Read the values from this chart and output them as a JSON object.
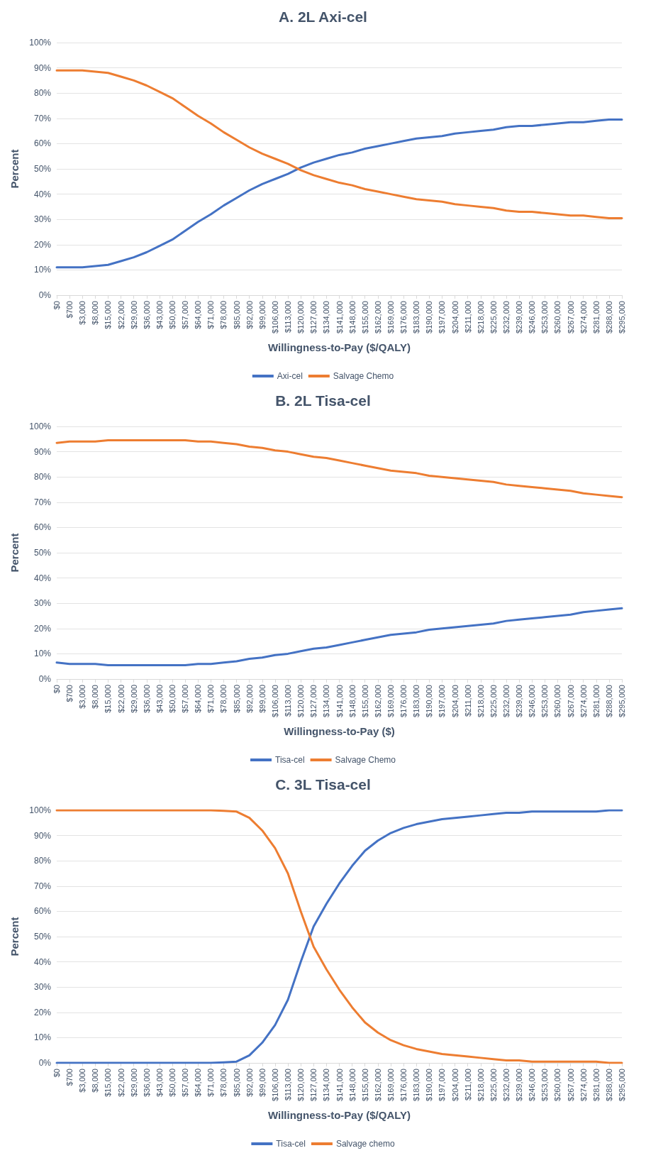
{
  "chart_data": [
    {
      "type": "line",
      "title": "A. 2L Axi-cel",
      "xlabel": "Willingness-to-Pay ($/QALY)",
      "ylabel": "Percent",
      "categories": [
        "$0",
        "$700",
        "$3,000",
        "$8,000",
        "$15,000",
        "$22,000",
        "$29,000",
        "$36,000",
        "$43,000",
        "$50,000",
        "$57,000",
        "$64,000",
        "$71,000",
        "$78,000",
        "$85,000",
        "$92,000",
        "$99,000",
        "$106,000",
        "$113,000",
        "$120,000",
        "$127,000",
        "$134,000",
        "$141,000",
        "$148,000",
        "$155,000",
        "$162,000",
        "$169,000",
        "$176,000",
        "$183,000",
        "$190,000",
        "$197,000",
        "$204,000",
        "$211,000",
        "$218,000",
        "$225,000",
        "$232,000",
        "$239,000",
        "$246,000",
        "$253,000",
        "$260,000",
        "$267,000",
        "$274,000",
        "$281,000",
        "$288,000",
        "$295,000"
      ],
      "series": [
        {
          "name": "Axi-cel",
          "color": "#4472c4",
          "values": [
            11,
            11,
            11,
            11.5,
            12,
            13.5,
            15,
            17,
            19.5,
            22,
            25.5,
            29,
            32,
            35.5,
            38.5,
            41.5,
            44,
            46,
            48,
            50.5,
            52.5,
            54,
            55.5,
            56.5,
            58,
            59,
            60,
            61,
            62,
            62.5,
            63,
            64,
            64.5,
            65,
            65.5,
            66.5,
            67,
            67,
            67.5,
            68,
            68.5,
            68.5,
            69,
            69.5,
            69.5
          ]
        },
        {
          "name": "Salvage Chemo",
          "color": "#ed7d31",
          "values": [
            89,
            89,
            89,
            88.5,
            88,
            86.5,
            85,
            83,
            80.5,
            78,
            74.5,
            71,
            68,
            64.5,
            61.5,
            58.5,
            56,
            54,
            52,
            49.5,
            47.5,
            46,
            44.5,
            43.5,
            42,
            41,
            40,
            39,
            38,
            37.5,
            37,
            36,
            35.5,
            35,
            34.5,
            33.5,
            33,
            33,
            32.5,
            32,
            31.5,
            31.5,
            31,
            30.5,
            30.5
          ]
        }
      ],
      "ylim": [
        0,
        100
      ],
      "yticks": [
        {
          "value": 0,
          "label": "0%"
        },
        {
          "value": 10,
          "label": "10%"
        },
        {
          "value": 20,
          "label": "20%"
        },
        {
          "value": 30,
          "label": "30%"
        },
        {
          "value": 40,
          "label": "40%"
        },
        {
          "value": 50,
          "label": "50%"
        },
        {
          "value": 60,
          "label": "60%"
        },
        {
          "value": 70,
          "label": "70%"
        },
        {
          "value": 80,
          "label": "80%"
        },
        {
          "value": 90,
          "label": "90%"
        },
        {
          "value": 100,
          "label": "100%"
        }
      ],
      "grid": "y",
      "legend": "bottom",
      "marker": "none",
      "line_style": "solid"
    },
    {
      "type": "line",
      "title": "B. 2L Tisa-cel",
      "xlabel": "Willingness-to-Pay ($)",
      "ylabel": "Percent",
      "categories": [
        "$0",
        "$700",
        "$3,000",
        "$8,000",
        "$15,000",
        "$22,000",
        "$29,000",
        "$36,000",
        "$43,000",
        "$50,000",
        "$57,000",
        "$64,000",
        "$71,000",
        "$78,000",
        "$85,000",
        "$92,000",
        "$99,000",
        "$106,000",
        "$113,000",
        "$120,000",
        "$127,000",
        "$134,000",
        "$141,000",
        "$148,000",
        "$155,000",
        "$162,000",
        "$169,000",
        "$176,000",
        "$183,000",
        "$190,000",
        "$197,000",
        "$204,000",
        "$211,000",
        "$218,000",
        "$225,000",
        "$232,000",
        "$239,000",
        "$246,000",
        "$253,000",
        "$260,000",
        "$267,000",
        "$274,000",
        "$281,000",
        "$288,000",
        "$295,000"
      ],
      "series": [
        {
          "name": "Tisa-cel",
          "color": "#4472c4",
          "values": [
            6.5,
            6,
            6,
            6,
            5.5,
            5.5,
            5.5,
            5.5,
            5.5,
            5.5,
            5.5,
            6,
            6,
            6.5,
            7,
            8,
            8.5,
            9.5,
            10,
            11,
            12,
            12.5,
            13.5,
            14.5,
            15.5,
            16.5,
            17.5,
            18,
            18.5,
            19.5,
            20,
            20.5,
            21,
            21.5,
            22,
            23,
            23.5,
            24,
            24.5,
            25,
            25.5,
            26.5,
            27,
            27.5,
            28
          ]
        },
        {
          "name": "Salvage Chemo",
          "color": "#ed7d31",
          "values": [
            93.5,
            94,
            94,
            94,
            94.5,
            94.5,
            94.5,
            94.5,
            94.5,
            94.5,
            94.5,
            94,
            94,
            93.5,
            93,
            92,
            91.5,
            90.5,
            90,
            89,
            88,
            87.5,
            86.5,
            85.5,
            84.5,
            83.5,
            82.5,
            82,
            81.5,
            80.5,
            80,
            79.5,
            79,
            78.5,
            78,
            77,
            76.5,
            76,
            75.5,
            75,
            74.5,
            73.5,
            73,
            72.5,
            72
          ]
        }
      ],
      "ylim": [
        0,
        100
      ],
      "yticks": [
        {
          "value": 0,
          "label": "0%"
        },
        {
          "value": 10,
          "label": "10%"
        },
        {
          "value": 20,
          "label": "20%"
        },
        {
          "value": 30,
          "label": "30%"
        },
        {
          "value": 40,
          "label": "40%"
        },
        {
          "value": 50,
          "label": "50%"
        },
        {
          "value": 60,
          "label": "60%"
        },
        {
          "value": 70,
          "label": "70%"
        },
        {
          "value": 80,
          "label": "80%"
        },
        {
          "value": 90,
          "label": "90%"
        },
        {
          "value": 100,
          "label": "100%"
        }
      ],
      "grid": "y",
      "legend": "bottom",
      "marker": "none",
      "line_style": "solid"
    },
    {
      "type": "line",
      "title": "C. 3L Tisa-cel",
      "xlabel": "Willingness-to-Pay ($/QALY)",
      "ylabel": "Percent",
      "categories": [
        "$0",
        "$700",
        "$3,000",
        "$8,000",
        "$15,000",
        "$22,000",
        "$29,000",
        "$36,000",
        "$43,000",
        "$50,000",
        "$57,000",
        "$64,000",
        "$71,000",
        "$78,000",
        "$85,000",
        "$92,000",
        "$99,000",
        "$106,000",
        "$113,000",
        "$120,000",
        "$127,000",
        "$134,000",
        "$141,000",
        "$148,000",
        "$155,000",
        "$162,000",
        "$169,000",
        "$176,000",
        "$183,000",
        "$190,000",
        "$197,000",
        "$204,000",
        "$211,000",
        "$218,000",
        "$225,000",
        "$232,000",
        "$239,000",
        "$246,000",
        "$253,000",
        "$260,000",
        "$267,000",
        "$274,000",
        "$281,000",
        "$288,000",
        "$295,000"
      ],
      "series": [
        {
          "name": "Tisa-cel",
          "color": "#4472c4",
          "values": [
            0,
            0,
            0,
            0,
            0,
            0,
            0,
            0,
            0,
            0,
            0,
            0,
            0,
            0.2,
            0.5,
            3,
            8,
            15,
            25,
            40,
            54,
            63,
            71,
            78,
            84,
            88,
            91,
            93,
            94.5,
            95.5,
            96.5,
            97,
            97.5,
            98,
            98.5,
            99,
            99,
            99.5,
            99.5,
            99.5,
            99.5,
            99.5,
            99.5,
            100,
            100
          ]
        },
        {
          "name": "Salvage chemo",
          "color": "#ed7d31",
          "values": [
            100,
            100,
            100,
            100,
            100,
            100,
            100,
            100,
            100,
            100,
            100,
            100,
            100,
            99.8,
            99.5,
            97,
            92,
            85,
            75,
            60,
            46,
            37,
            29,
            22,
            16,
            12,
            9,
            7,
            5.5,
            4.5,
            3.5,
            3,
            2.5,
            2,
            1.5,
            1,
            1,
            0.5,
            0.5,
            0.5,
            0.5,
            0.5,
            0.5,
            0,
            0
          ]
        }
      ],
      "ylim": [
        0,
        100
      ],
      "yticks": [
        {
          "value": 0,
          "label": "0%"
        },
        {
          "value": 10,
          "label": "10%"
        },
        {
          "value": 20,
          "label": "20%"
        },
        {
          "value": 30,
          "label": "30%"
        },
        {
          "value": 40,
          "label": "40%"
        },
        {
          "value": 50,
          "label": "50%"
        },
        {
          "value": 60,
          "label": "60%"
        },
        {
          "value": 70,
          "label": "70%"
        },
        {
          "value": 80,
          "label": "80%"
        },
        {
          "value": 90,
          "label": "90%"
        },
        {
          "value": 100,
          "label": "100%"
        }
      ],
      "grid": "y",
      "legend": "bottom",
      "marker": "none",
      "line_style": "solid"
    }
  ]
}
